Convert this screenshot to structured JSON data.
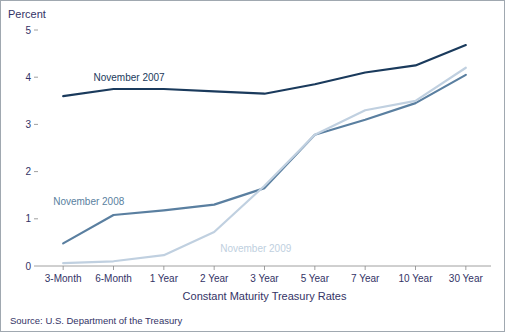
{
  "chart_data": {
    "type": "line",
    "x_label": "Constant Maturity Treasury Rates",
    "y_label": "Percent",
    "annotations": [
      "Source: U.S. Department of the Treasury"
    ],
    "categories": [
      "3-Month",
      "6-Month",
      "1 Year",
      "2 Year",
      "3 Year",
      "5 Year",
      "7 Year",
      "10 Year",
      "30 Year"
    ],
    "series": [
      {
        "name": "November 2007",
        "color": "#1a3a5c",
        "values": [
          3.6,
          3.75,
          3.75,
          3.7,
          3.65,
          3.85,
          4.1,
          4.25,
          4.68
        ]
      },
      {
        "name": "November 2008",
        "color": "#5a7fa0",
        "values": [
          0.48,
          1.08,
          1.18,
          1.3,
          1.65,
          2.78,
          3.1,
          3.45,
          4.05
        ]
      },
      {
        "name": "November 2009",
        "color": "#c0d0e0",
        "values": [
          0.06,
          0.1,
          0.23,
          0.72,
          1.7,
          2.78,
          3.3,
          3.5,
          4.2
        ]
      }
    ],
    "ylim": [
      0,
      5
    ],
    "yticks": [
      0,
      1,
      2,
      3,
      4,
      5
    ],
    "grid": false
  }
}
